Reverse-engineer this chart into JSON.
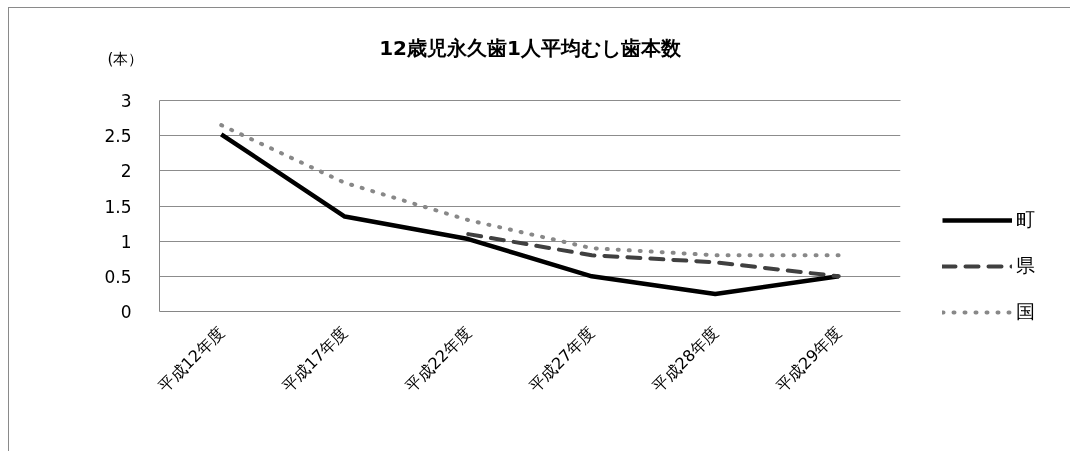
{
  "chart_data": {
    "type": "line",
    "title": "12歳児永久歯1人平均むし歯本数",
    "ylabel": "(本）",
    "categories": [
      "平成12年度",
      "平成17年度",
      "平成22年度",
      "平成27年度",
      "平成28年度",
      "平成29年度"
    ],
    "series": [
      {
        "name": "町",
        "color": "#000000",
        "line_style": "solid",
        "values": [
          2.52,
          1.35,
          1.03,
          0.5,
          0.25,
          0.5
        ]
      },
      {
        "name": "県",
        "color": "#404040",
        "line_style": "dashed",
        "values": [
          null,
          null,
          1.1,
          0.8,
          0.7,
          0.5
        ]
      },
      {
        "name": "国",
        "color": "#888888",
        "line_style": "dotted",
        "values": [
          2.65,
          1.83,
          1.3,
          0.9,
          0.8,
          0.8
        ]
      }
    ],
    "ylim": [
      0,
      3
    ],
    "yticks": [
      0,
      0.5,
      1,
      1.5,
      2,
      2.5,
      3
    ],
    "grid": "y",
    "legend": "right"
  }
}
